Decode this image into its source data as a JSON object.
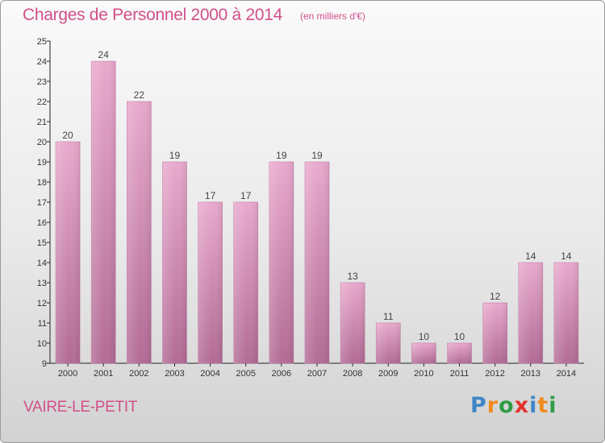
{
  "title": "Charges de Personnel 2000 à 2014",
  "subtitle": "(en milliers d'€)",
  "commune": "VAIRE-LE-PETIT",
  "logo": {
    "letters": [
      "P",
      "r",
      "o",
      "x",
      "i",
      "t",
      "i"
    ],
    "colors": [
      "#3f86c8",
      "#f08a1e",
      "#2e9c45",
      "#e4322b",
      "#3f86c8",
      "#f08a1e",
      "#2e9c45"
    ]
  },
  "chart_data": {
    "type": "bar",
    "title": "Charges de Personnel 2000 à 2014",
    "subtitle": "(en milliers d'€)",
    "categories": [
      "2000",
      "2001",
      "2002",
      "2003",
      "2004",
      "2005",
      "2006",
      "2007",
      "2008",
      "2009",
      "2010",
      "2011",
      "2012",
      "2013",
      "2014"
    ],
    "values": [
      20,
      24,
      22,
      19,
      17,
      17,
      19,
      19,
      13,
      11,
      10,
      10,
      12,
      14,
      14
    ],
    "ylim": [
      9,
      25
    ],
    "yticks": [
      9,
      10,
      11,
      12,
      13,
      14,
      15,
      16,
      17,
      18,
      19,
      20,
      21,
      22,
      23,
      24,
      25
    ],
    "xlabel": "",
    "ylabel": "",
    "grid": false,
    "bar_color": "#d98fb7"
  }
}
